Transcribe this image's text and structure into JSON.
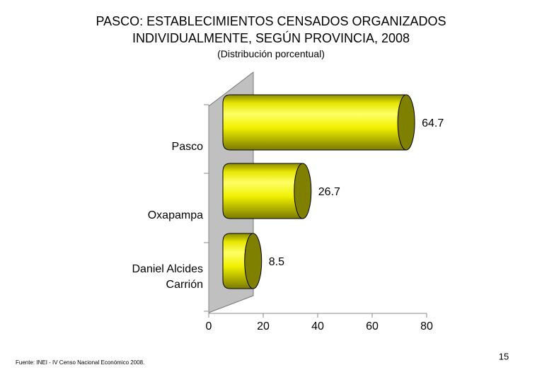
{
  "chart_data": {
    "type": "bar",
    "orientation": "horizontal",
    "title": "PASCO: ESTABLECIMIENTOS CENSADOS ORGANIZADOS INDIVIDUALMENTE, SEGÚN PROVINCIA, 2008",
    "subtitle": "(Distribución porcentual)",
    "categories": [
      "Pasco",
      "Oxapampa",
      "Daniel Alcides Carrión"
    ],
    "values": [
      64.7,
      26.7,
      8.5
    ],
    "color": "#ffff00",
    "xlim": [
      0,
      80
    ],
    "xticks": [
      0,
      20,
      40,
      60,
      80
    ]
  },
  "footer": {
    "source": "Fuente: INEI - IV Censo Nacional Económico 2008.",
    "page": "15"
  }
}
